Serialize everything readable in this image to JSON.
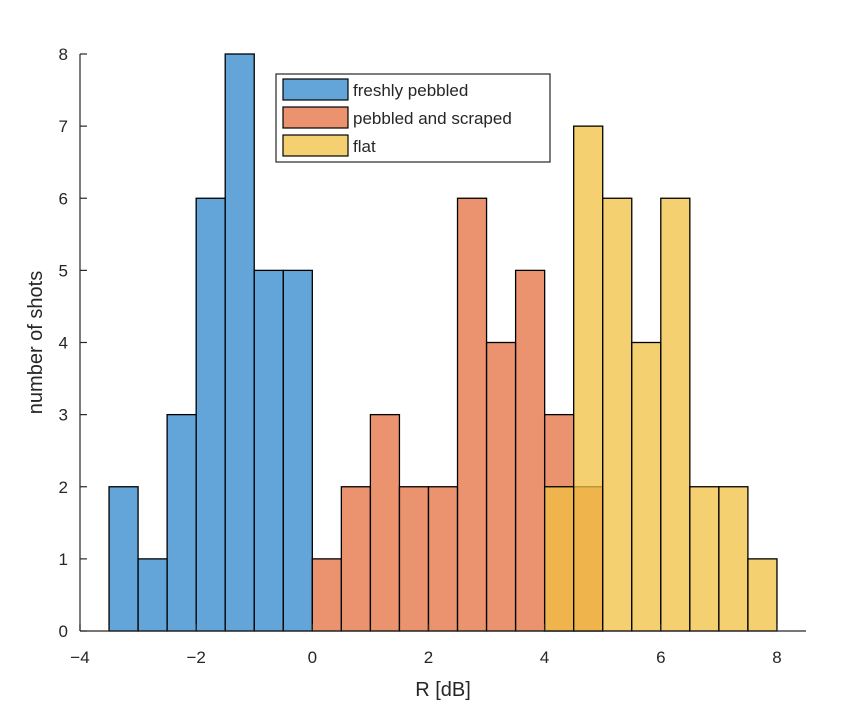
{
  "chart_data": {
    "type": "bar",
    "xlabel": "R [dB]",
    "ylabel": "number of shots",
    "xlim": [
      -4,
      8.5
    ],
    "ylim": [
      0,
      8
    ],
    "xticks": [
      "−4",
      "−2",
      "0",
      "2",
      "4",
      "6",
      "8"
    ],
    "xtick_values": [
      -4,
      -2,
      0,
      2,
      4,
      6,
      8
    ],
    "yticks": [
      "0",
      "1",
      "2",
      "3",
      "4",
      "5",
      "6",
      "7",
      "8"
    ],
    "ytick_values": [
      0,
      1,
      2,
      3,
      4,
      5,
      6,
      7,
      8
    ],
    "bin_width": 0.5,
    "grid": false,
    "legend_position": "top-center",
    "bar_edge_color": "#000000",
    "bar_opacity": 0.75,
    "series": [
      {
        "name": "freshly pebbled",
        "color": "#2f86cc",
        "bin_edges": [
          -3.5,
          -3.0,
          -2.5,
          -2.0,
          -1.5,
          -1.0,
          -0.5
        ],
        "counts": [
          2,
          1,
          3,
          6,
          8,
          5,
          5
        ]
      },
      {
        "name": "pebbled and scraped",
        "color": "#e46f3f",
        "bin_edges": [
          0.0,
          0.5,
          1.0,
          1.5,
          2.0,
          2.5,
          3.0,
          3.5,
          4.0,
          4.5
        ],
        "counts": [
          1,
          2,
          3,
          2,
          2,
          6,
          4,
          5,
          3,
          2
        ]
      },
      {
        "name": "flat",
        "color": "#f0c040",
        "bin_edges": [
          4.0,
          4.5,
          5.0,
          5.5,
          6.0,
          6.5,
          7.0,
          7.5
        ],
        "counts": [
          2,
          7,
          6,
          4,
          6,
          2,
          2,
          1
        ]
      }
    ]
  }
}
